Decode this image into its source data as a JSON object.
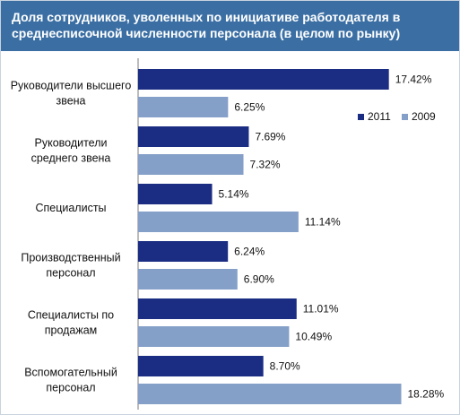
{
  "title": "Доля сотрудников, уволенных по инициативе работодателя в среднесписочной численности персонала (в целом по рынку)",
  "colors": {
    "s2011": "#1a2d82",
    "s2009": "#849fc8",
    "header": "#3b6fa4"
  },
  "chart_data": {
    "type": "bar",
    "orientation": "horizontal",
    "title": "Доля сотрудников, уволенных по инициативе работодателя в среднесписочной численности персонала (в целом по рынку)",
    "categories": [
      [
        "Руководители высшего",
        "звена"
      ],
      [
        "Руководители",
        "среднего звена"
      ],
      [
        "Специалисты"
      ],
      [
        "Производственный",
        "персонал"
      ],
      [
        "Специалисты по",
        "продажам"
      ],
      [
        "Вспомогательный",
        "персонал"
      ]
    ],
    "series": [
      {
        "name": "2011",
        "values": [
          17.42,
          7.69,
          5.14,
          6.24,
          11.01,
          8.7
        ],
        "labels": [
          "17.42%",
          "7.69%",
          "5.14%",
          "6.24%",
          "11.01%",
          "8.70%"
        ]
      },
      {
        "name": "2009",
        "values": [
          6.25,
          7.32,
          11.14,
          6.9,
          10.49,
          18.28
        ],
        "labels": [
          "6.25%",
          "7.32%",
          "11.14%",
          "6.90%",
          "10.49%",
          "18.28%"
        ]
      }
    ],
    "legend": {
      "position": "right",
      "entries": [
        "2011",
        "2009"
      ]
    },
    "grid": false
  }
}
